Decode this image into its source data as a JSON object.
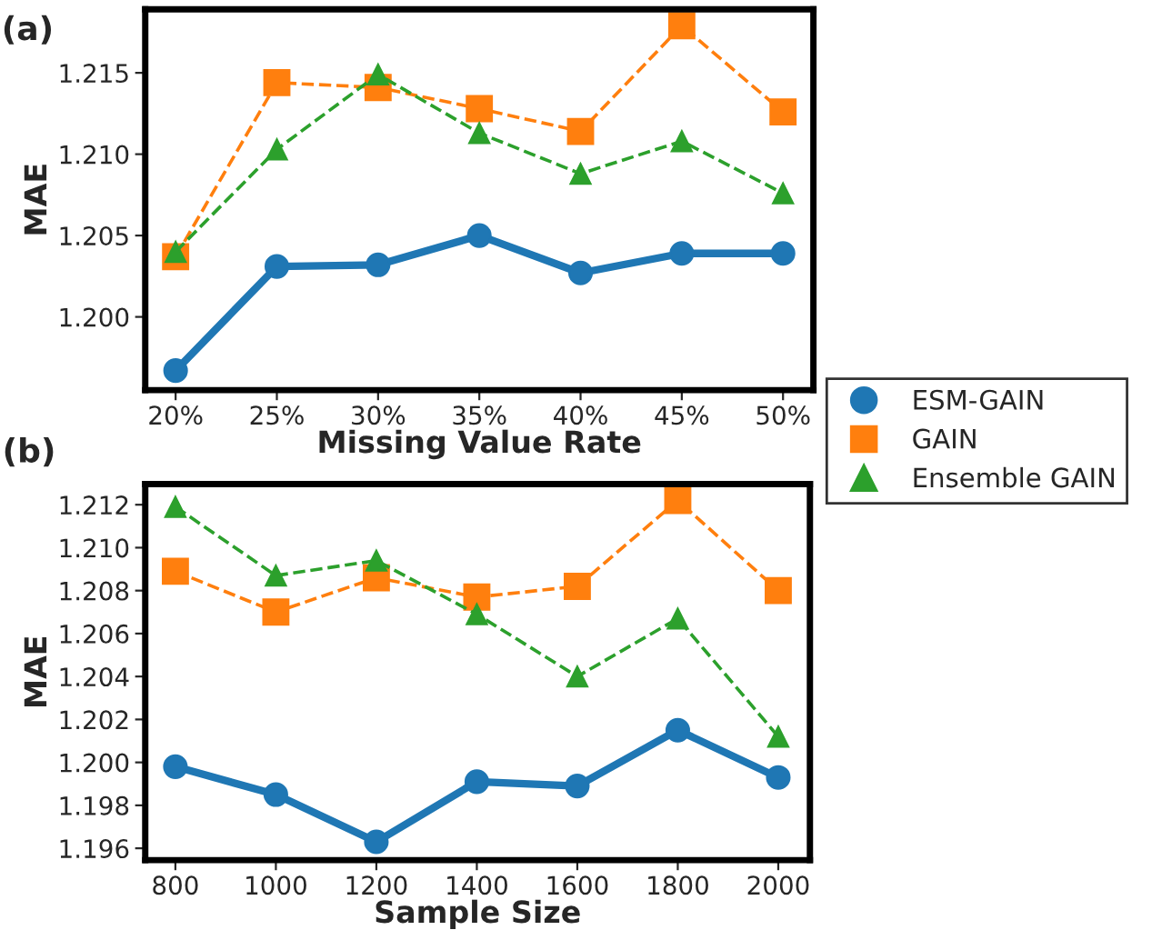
{
  "chart_data": [
    {
      "type": "line",
      "xlabel": "Missing Value Rate",
      "ylabel": "MAE",
      "annotations": [
        "(a)"
      ],
      "categories": [
        "20%",
        "25%",
        "30%",
        "35%",
        "40%",
        "45%",
        "50%"
      ],
      "ylim": [
        1.1955,
        1.2189
      ],
      "yticks": [
        {
          "value": 1.2,
          "label": "1.200"
        },
        {
          "value": 1.205,
          "label": "1.205"
        },
        {
          "value": 1.21,
          "label": "1.210"
        },
        {
          "value": 1.215,
          "label": "1.215"
        }
      ],
      "grid": false,
      "legend": "bottom right",
      "series": [
        {
          "name": "ESM-GAIN",
          "color": "#1f77b4",
          "marker": "circle",
          "line_style": "solid",
          "values": [
            1.1967,
            1.2031,
            1.2032,
            1.205,
            1.2027,
            1.2039,
            1.2039
          ]
        },
        {
          "name": "GAIN",
          "color": "#ff7f0e",
          "marker": "square",
          "line_style": "dashed",
          "values": [
            1.2037,
            1.2144,
            1.2141,
            1.2128,
            1.2114,
            1.2179,
            1.2126
          ]
        },
        {
          "name": "Ensemble GAIN",
          "color": "#2ca02c",
          "marker": "triangle",
          "line_style": "dashed",
          "values": [
            1.204,
            1.2103,
            1.2149,
            1.2113,
            1.2088,
            1.2108,
            1.2076
          ]
        }
      ]
    },
    {
      "type": "line",
      "xlabel": "Sample Size",
      "ylabel": "MAE",
      "annotations": [
        "(b)"
      ],
      "x": [
        800,
        1000,
        1200,
        1400,
        1600,
        1800,
        2000
      ],
      "xlim": [
        740,
        2063
      ],
      "xticks": [
        800,
        1000,
        1200,
        1400,
        1600,
        1800,
        2000
      ],
      "ylim": [
        1.19545,
        1.21296
      ],
      "yticks": [
        1.196,
        1.198,
        {
          "value": 1.2,
          "label": "1.200"
        },
        1.202,
        1.204,
        1.206,
        1.208,
        {
          "value": 1.21,
          "label": "1.210"
        },
        1.212
      ],
      "grid": false,
      "series": [
        {
          "color": "#1f77b4",
          "marker": "circle",
          "line_style": "solid",
          "values": [
            1.1998,
            1.1985,
            1.1963,
            1.1991,
            1.1989,
            1.2015,
            1.1993
          ]
        },
        {
          "color": "#ff7f0e",
          "marker": "square",
          "line_style": "dashed",
          "values": [
            1.2089,
            1.207,
            1.2086,
            1.2077,
            1.2082,
            1.2122,
            1.208
          ]
        },
        {
          "color": "#2ca02c",
          "marker": "triangle",
          "line_style": "dashed",
          "values": [
            1.2119,
            1.2087,
            1.2094,
            1.2069,
            1.204,
            1.2067,
            1.2012
          ]
        }
      ]
    }
  ]
}
